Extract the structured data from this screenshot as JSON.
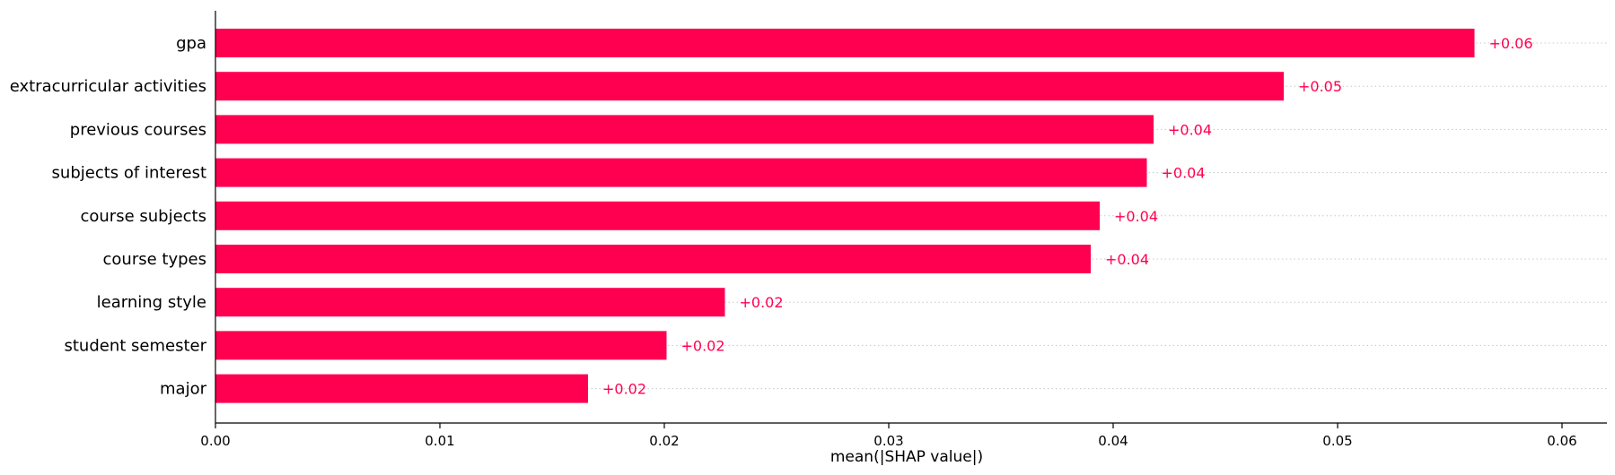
{
  "chart_data": {
    "type": "bar",
    "orientation": "horizontal",
    "categories": [
      "gpa",
      "extracurricular activities",
      "previous courses",
      "subjects of interest",
      "course subjects",
      "course types",
      "learning style",
      "student semester",
      "major"
    ],
    "values": [
      0.0561,
      0.0476,
      0.0418,
      0.0415,
      0.0394,
      0.039,
      0.0227,
      0.0201,
      0.0166
    ],
    "data_labels": [
      "+0.06",
      "+0.05",
      "+0.04",
      "+0.04",
      "+0.04",
      "+0.04",
      "+0.02",
      "+0.02",
      "+0.02"
    ],
    "xlabel": "mean(|SHAP value|)",
    "ylabel": "",
    "title": "",
    "xlim": [
      0,
      0.062
    ],
    "xticks": [
      0.0,
      0.01,
      0.02,
      0.03,
      0.04,
      0.05,
      0.06
    ],
    "xtick_labels": [
      "0.00",
      "0.01",
      "0.02",
      "0.03",
      "0.04",
      "0.05",
      "0.06"
    ],
    "bar_color": "#ff0051",
    "label_color": "#ff0051",
    "grid": "dotted horizontal guide lines per bar"
  }
}
